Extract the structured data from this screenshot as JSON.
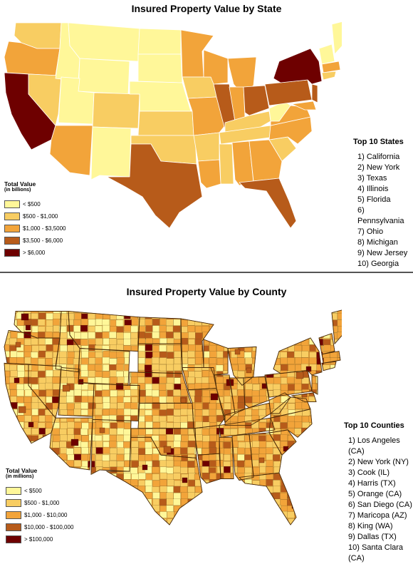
{
  "colors": {
    "c1": "#fff799",
    "c2": "#f8cd62",
    "c3": "#f2a43a",
    "c4": "#b75b1a",
    "c5": "#6e0000",
    "border": "#ffffff",
    "outline": "#8a8a8a"
  },
  "state_map": {
    "title": "Insured Property Value by State",
    "legend": {
      "title": "Total Value",
      "subtitle": "(in billions)",
      "items": [
        {
          "label": "< $500",
          "color": "#fff799"
        },
        {
          "label": "$500 - $1,000",
          "color": "#f8cd62"
        },
        {
          "label": "$1,000 - $3,5000",
          "color": "#f2a43a"
        },
        {
          "label": "$3,500 - $6,000",
          "color": "#b75b1a"
        },
        {
          "label": "> $6,000",
          "color": "#6e0000"
        }
      ]
    },
    "top_list": {
      "title": "Top 10 States",
      "items": [
        "1) California",
        "2) New York",
        "3) Texas",
        "4) Illinois",
        "5) Florida",
        "6) Pennsylvania",
        "7) Ohio",
        "8) Michigan",
        "9) New Jersey",
        "10) Georgia"
      ]
    }
  },
  "county_map": {
    "title": "Insured Property Value by County",
    "legend": {
      "title": "Total Value",
      "subtitle": "(in millions)",
      "items": [
        {
          "label": "< $500",
          "color": "#fff799"
        },
        {
          "label": "$500 - $1,000",
          "color": "#f8cd62"
        },
        {
          "label": "$1,000 - $10,000",
          "color": "#f2a43a"
        },
        {
          "label": "$10,000 - $100,000",
          "color": "#b75b1a"
        },
        {
          "label": "> $100,000",
          "color": "#6e0000"
        }
      ]
    },
    "top_list": {
      "title": "Top 10 Counties",
      "items": [
        "1) Los Angeles (CA)",
        "2) New York (NY)",
        "3) Cook (IL)",
        "4) Harris (TX)",
        "5) Orange (CA)",
        "6) San Diego (CA)",
        "7) Maricopa (AZ)",
        "8) King (WA)",
        "9) Dallas (TX)",
        "10) Santa Clara (CA)"
      ]
    }
  }
}
